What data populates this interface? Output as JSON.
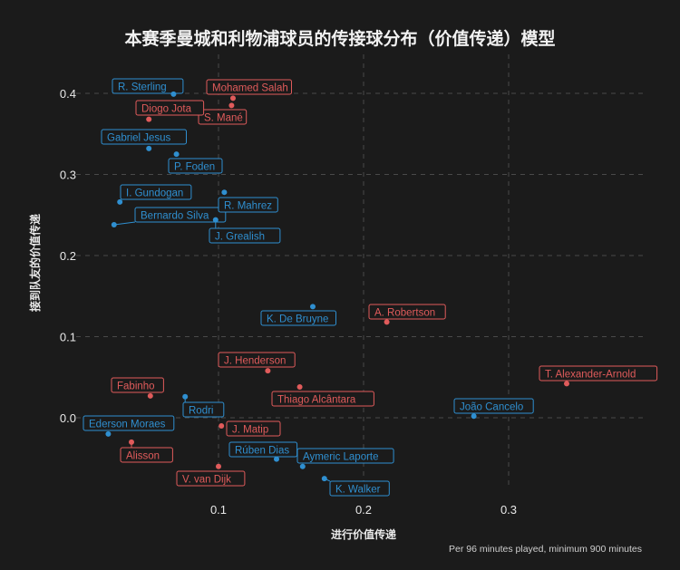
{
  "title": "本赛季曼城和利物浦球员的传接球分布（价值传递）模型",
  "footnote": "Per 96 minutes played, minimum 900 minutes",
  "colors": {
    "man_city": "#2f8fd0",
    "liverpool": "#e05b5b",
    "background": "#1b1b1b",
    "grid": "#4a4a4a"
  },
  "chart_data": {
    "type": "scatter",
    "xlabel": "进行价值传递",
    "ylabel": "接到队友的价值传递",
    "xlim": [
      0.0,
      0.36
    ],
    "ylim": [
      -0.085,
      0.425
    ],
    "xticks": [
      "0.1",
      "0.2",
      "0.3"
    ],
    "yticks": [
      "0.0",
      "0.1",
      "0.2",
      "0.3",
      "0.4"
    ],
    "grid": true,
    "series": [
      {
        "color": "#2f8fd0",
        "points": [
          {
            "name": "R. Sterling",
            "x": 0.069,
            "y": 0.399
          },
          {
            "name": "Gabriel Jesus",
            "x": 0.052,
            "y": 0.332
          },
          {
            "name": "P. Foden",
            "x": 0.071,
            "y": 0.325
          },
          {
            "name": "I. Gundogan",
            "x": 0.032,
            "y": 0.266
          },
          {
            "name": "Bernardo Silva",
            "x": 0.028,
            "y": 0.238
          },
          {
            "name": "R. Mahrez",
            "x": 0.104,
            "y": 0.278
          },
          {
            "name": "J. Grealish",
            "x": 0.098,
            "y": 0.244
          },
          {
            "name": "K. De Bruyne",
            "x": 0.165,
            "y": 0.137
          },
          {
            "name": "Rodri",
            "x": 0.077,
            "y": 0.026
          },
          {
            "name": "Ederson Moraes",
            "x": 0.024,
            "y": -0.02
          },
          {
            "name": "Rúben Dias",
            "x": 0.14,
            "y": -0.051
          },
          {
            "name": "Aymeric Laporte",
            "x": 0.158,
            "y": -0.06
          },
          {
            "name": "K. Walker",
            "x": 0.173,
            "y": -0.075
          },
          {
            "name": "João Cancelo",
            "x": 0.276,
            "y": 0.002
          }
        ]
      },
      {
        "color": "#e05b5b",
        "points": [
          {
            "name": "Mohamed Salah",
            "x": 0.11,
            "y": 0.394
          },
          {
            "name": "S. Mané",
            "x": 0.109,
            "y": 0.385
          },
          {
            "name": "Diogo Jota",
            "x": 0.052,
            "y": 0.368
          },
          {
            "name": "A. Robertson",
            "x": 0.216,
            "y": 0.118
          },
          {
            "name": "T. Alexander-Arnold",
            "x": 0.34,
            "y": 0.042
          },
          {
            "name": "J. Henderson",
            "x": 0.134,
            "y": 0.058
          },
          {
            "name": "Thiago Alcântara",
            "x": 0.156,
            "y": 0.038
          },
          {
            "name": "Fabinho",
            "x": 0.053,
            "y": 0.027
          },
          {
            "name": "J. Matip",
            "x": 0.102,
            "y": -0.01
          },
          {
            "name": "Alisson",
            "x": 0.04,
            "y": -0.03
          },
          {
            "name": "V. van Dijk",
            "x": 0.1,
            "y": -0.06
          }
        ]
      }
    ]
  }
}
